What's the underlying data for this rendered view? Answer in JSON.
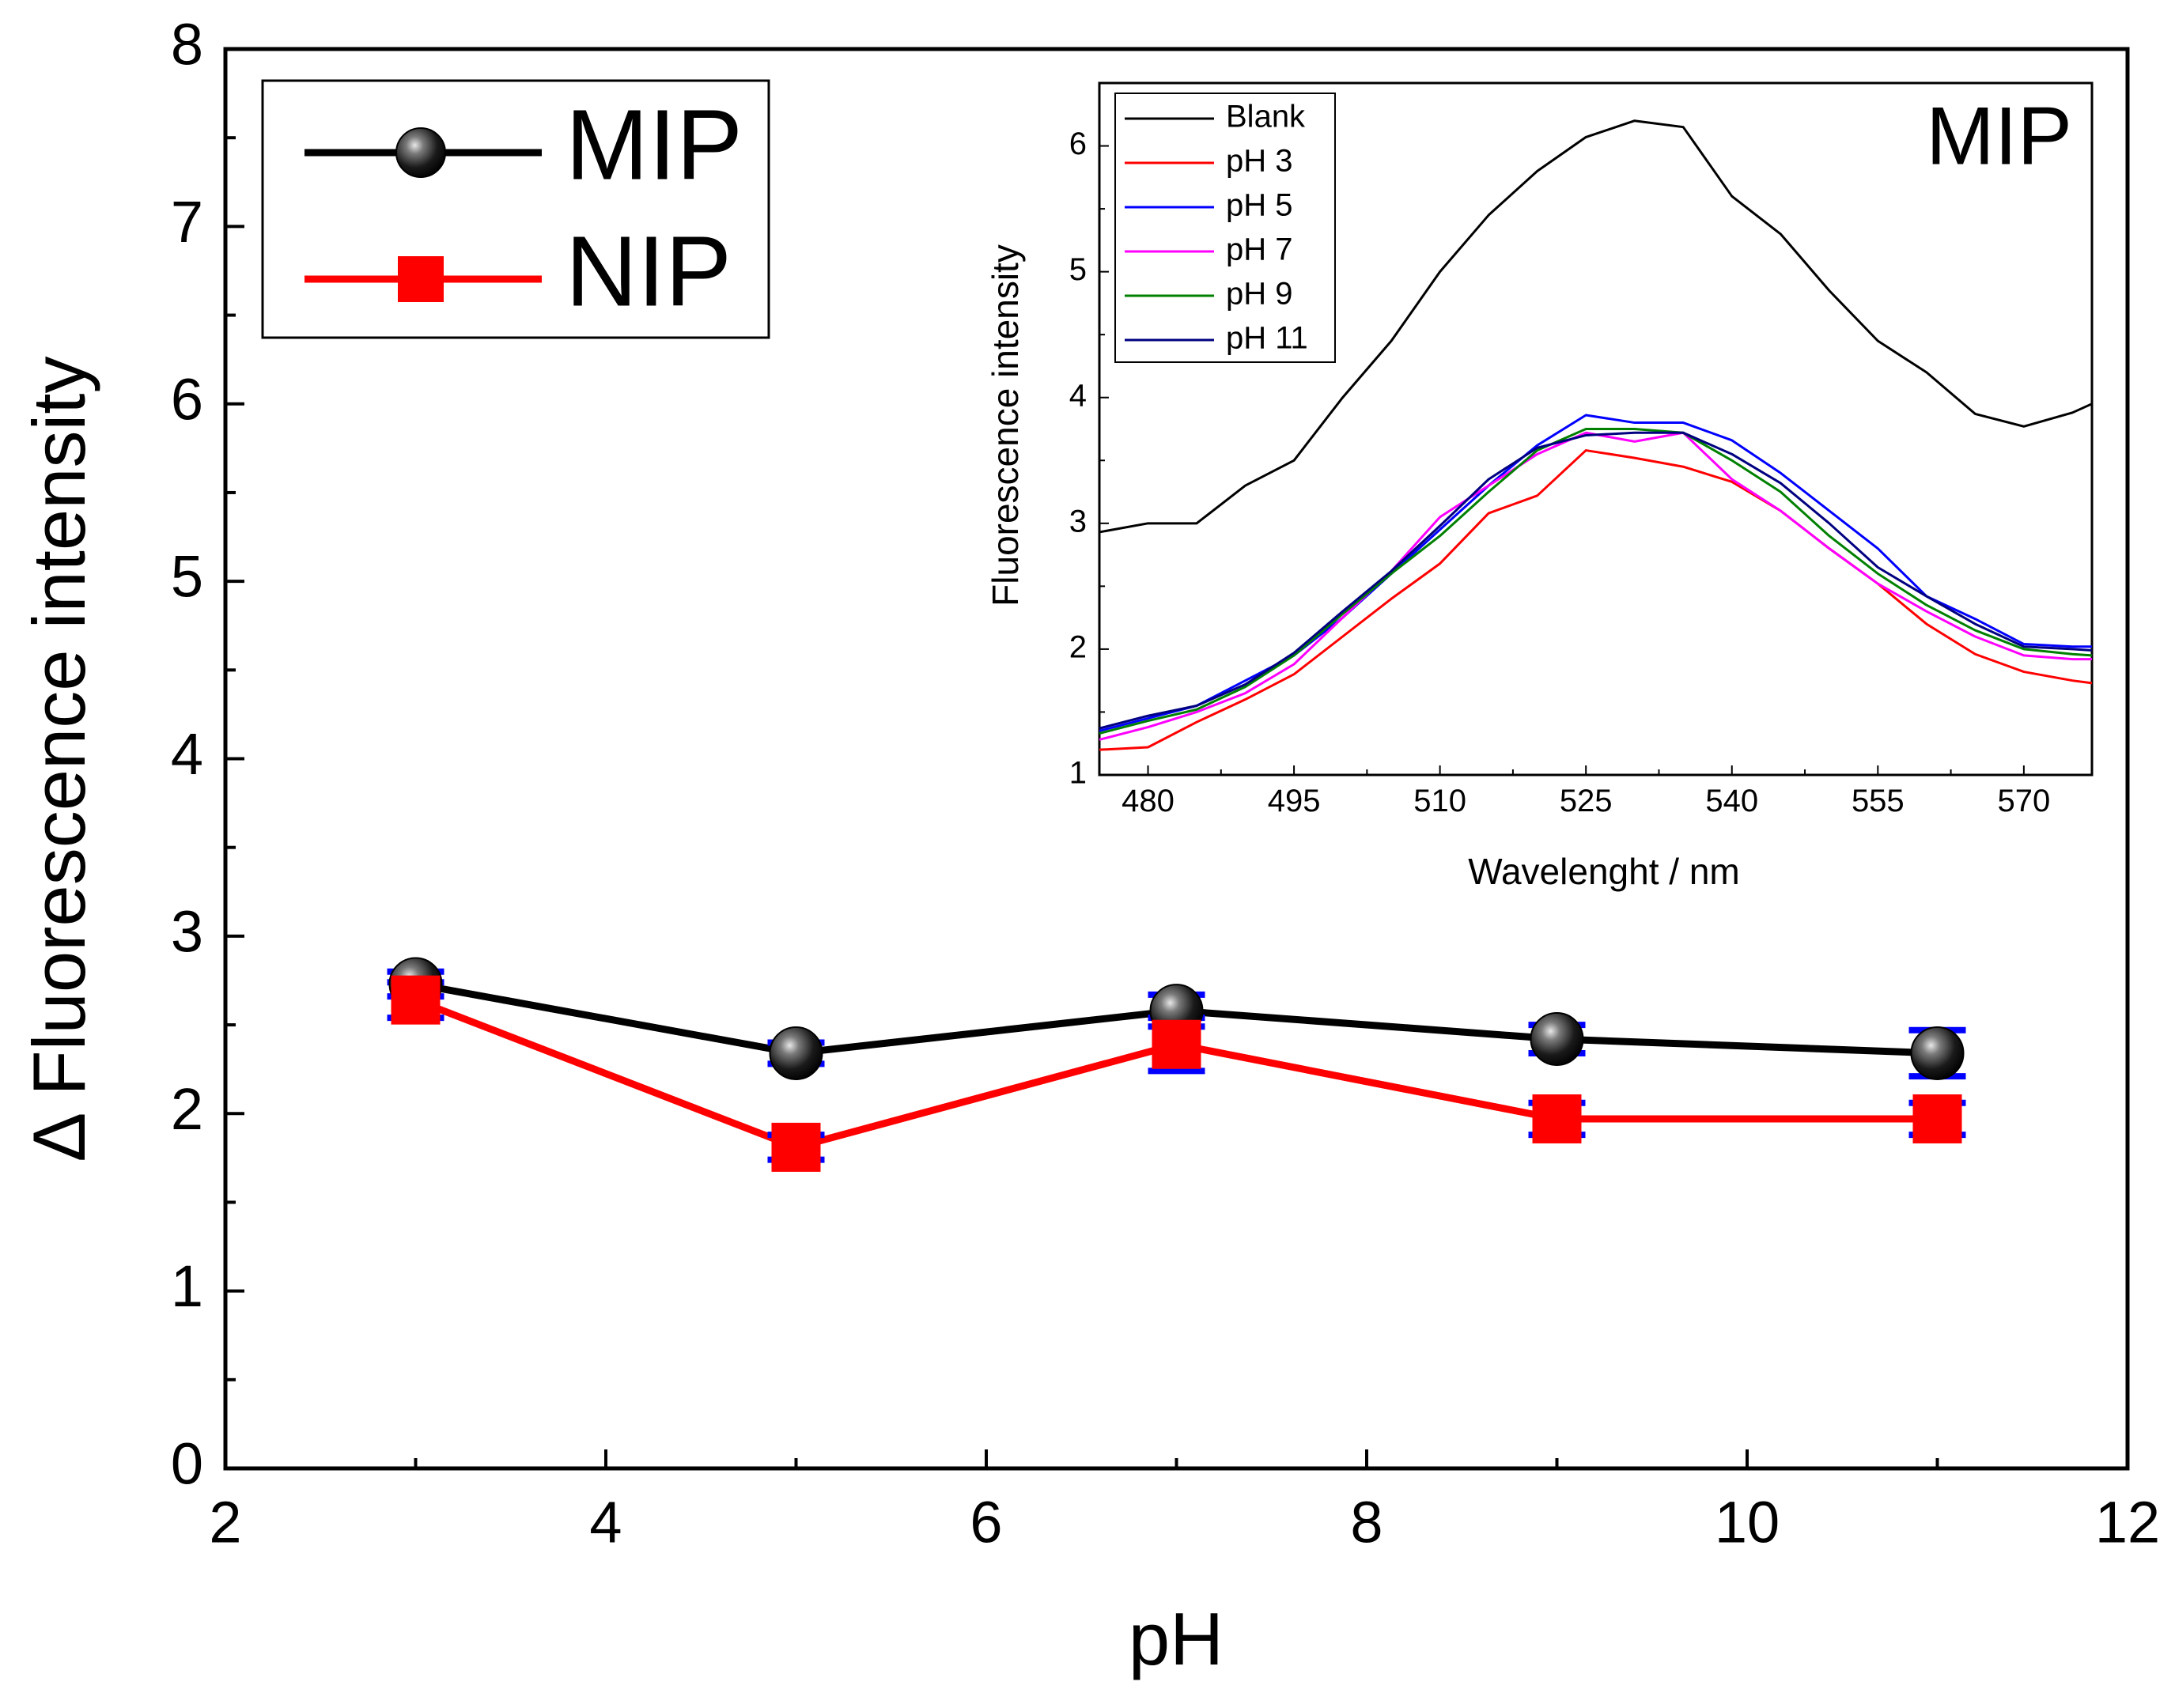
{
  "chart_data": [
    {
      "type": "line",
      "role": "main",
      "title": "",
      "xlabel": "pH",
      "ylabel": "Δ Fluorescence intensity",
      "xlim": [
        2,
        12
      ],
      "ylim": [
        0,
        8
      ],
      "xticks": [
        "2",
        "4",
        "6",
        "8",
        "10",
        "12"
      ],
      "yticks": [
        "0",
        "1",
        "2",
        "3",
        "4",
        "5",
        "6",
        "7",
        "8"
      ],
      "grid": false,
      "legend_position": "top-left",
      "x": [
        3,
        5,
        7,
        9,
        11
      ],
      "series": [
        {
          "name": "MIP",
          "color": "#000000",
          "marker": "sphere",
          "values": [
            2.73,
            2.34,
            2.58,
            2.42,
            2.34
          ],
          "errors": [
            0.07,
            0.06,
            0.09,
            0.08,
            0.13
          ]
        },
        {
          "name": "NIP",
          "color": "#ff0000",
          "marker": "square",
          "values": [
            2.64,
            1.81,
            2.39,
            1.97,
            1.97
          ],
          "errors": [
            0.1,
            0.07,
            0.15,
            0.09,
            0.09
          ]
        }
      ],
      "error_bar_color": "#0000ff"
    },
    {
      "type": "line",
      "role": "inset",
      "title": "",
      "annotation": "MIP",
      "xlabel": "Wavelenght / nm",
      "ylabel": "Fluorescence intensity",
      "xlim": [
        475,
        577
      ],
      "ylim": [
        1,
        6.5
      ],
      "xticks": [
        "480",
        "495",
        "510",
        "525",
        "540",
        "555",
        "570"
      ],
      "yticks": [
        "1",
        "2",
        "3",
        "4",
        "5",
        "6"
      ],
      "grid": false,
      "legend_position": "top-left",
      "x": [
        475,
        480,
        485,
        490,
        495,
        500,
        505,
        510,
        515,
        520,
        525,
        530,
        535,
        540,
        545,
        550,
        555,
        560,
        565,
        570,
        575,
        577
      ],
      "series": [
        {
          "name": "Blank",
          "color": "#000000",
          "values": [
            2.93,
            3.0,
            3.0,
            3.3,
            3.5,
            4.0,
            4.45,
            5.0,
            5.45,
            5.8,
            6.07,
            6.2,
            6.15,
            5.6,
            5.3,
            4.85,
            4.45,
            4.2,
            3.87,
            3.77,
            3.88,
            3.95
          ]
        },
        {
          "name": "pH 3",
          "color": "#ff0000",
          "values": [
            1.2,
            1.22,
            1.42,
            1.6,
            1.8,
            2.1,
            2.4,
            2.68,
            3.08,
            3.22,
            3.58,
            3.52,
            3.45,
            3.33,
            3.1,
            2.8,
            2.52,
            2.2,
            1.96,
            1.82,
            1.75,
            1.73
          ]
        },
        {
          "name": "pH 5",
          "color": "#0000ff",
          "values": [
            1.35,
            1.45,
            1.55,
            1.75,
            1.95,
            2.25,
            2.6,
            2.95,
            3.3,
            3.62,
            3.86,
            3.8,
            3.8,
            3.66,
            3.4,
            3.1,
            2.8,
            2.42,
            2.24,
            2.04,
            2.02,
            2.02
          ]
        },
        {
          "name": "pH 7",
          "color": "#ff00ff",
          "values": [
            1.28,
            1.38,
            1.5,
            1.65,
            1.88,
            2.25,
            2.62,
            3.05,
            3.3,
            3.55,
            3.72,
            3.65,
            3.72,
            3.35,
            3.1,
            2.8,
            2.52,
            2.3,
            2.1,
            1.95,
            1.92,
            1.92
          ]
        },
        {
          "name": "pH 9",
          "color": "#008000",
          "values": [
            1.33,
            1.43,
            1.52,
            1.7,
            1.95,
            2.28,
            2.6,
            2.9,
            3.25,
            3.58,
            3.75,
            3.75,
            3.72,
            3.5,
            3.25,
            2.9,
            2.6,
            2.35,
            2.15,
            2.0,
            1.96,
            1.95
          ]
        },
        {
          "name": "pH 11",
          "color": "#000080",
          "values": [
            1.37,
            1.47,
            1.55,
            1.72,
            1.97,
            2.3,
            2.62,
            2.98,
            3.35,
            3.6,
            3.7,
            3.72,
            3.72,
            3.55,
            3.32,
            3.0,
            2.65,
            2.42,
            2.2,
            2.02,
            2.0,
            1.99
          ]
        }
      ]
    }
  ]
}
